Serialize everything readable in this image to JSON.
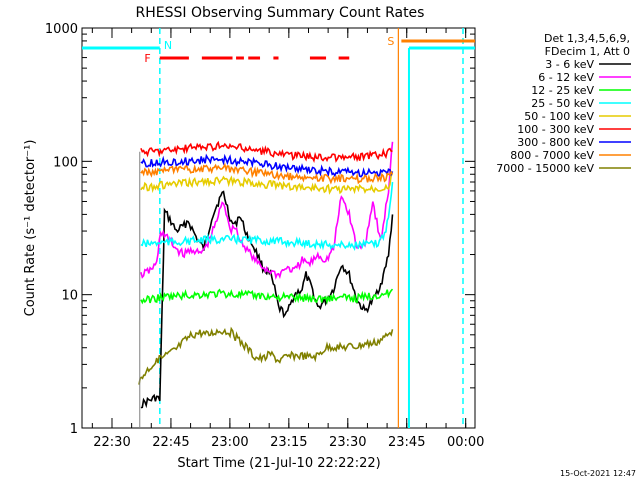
{
  "chart_data": {
    "type": "line",
    "title": "RHESSI Observing Summary Count Rates",
    "xlabel": "Start Time (21-Jul-10 22:22:22)",
    "ylabel": "Count Rate (s⁻¹ detector⁻¹)",
    "y_scale": "log",
    "ylim": [
      1,
      1000
    ],
    "y_ticks": [
      {
        "value": 1,
        "label": "1"
      },
      {
        "value": 10,
        "label": "10"
      },
      {
        "value": 100,
        "label": "100"
      },
      {
        "value": 1000,
        "label": "1000"
      }
    ],
    "xlim_minutes_from_start": [
      0,
      100
    ],
    "x_ticks": [
      {
        "label": "22:30",
        "minute": 7.63
      },
      {
        "label": "22:45",
        "minute": 22.63
      },
      {
        "label": "23:00",
        "minute": 37.63
      },
      {
        "label": "23:15",
        "minute": 52.63
      },
      {
        "label": "23:30",
        "minute": 67.63
      },
      {
        "label": "23:45",
        "minute": 82.63
      },
      {
        "label": "00:00",
        "minute": 97.63
      }
    ],
    "legend": {
      "position": "right",
      "header_lines": [
        "Det 1,3,4,5,6,9,",
        "FDecim 1, Att 0"
      ],
      "entries": [
        {
          "label": "3 - 6 keV",
          "color": "#000000"
        },
        {
          "label": "6 - 12 keV",
          "color": "#ff00ff"
        },
        {
          "label": "12 - 25 keV",
          "color": "#00ff00"
        },
        {
          "label": "25 - 50 keV",
          "color": "#00ffff"
        },
        {
          "label": "50 - 100 keV",
          "color": "#e6cc00"
        },
        {
          "label": "100 - 300 keV",
          "color": "#ff0000"
        },
        {
          "label": "300 - 800 keV",
          "color": "#0000ff"
        },
        {
          "label": "800 - 7000 keV",
          "color": "#ff8000"
        },
        {
          "label": "7000 - 15000 keV",
          "color": "#808000"
        }
      ]
    },
    "annotations": [
      {
        "label": "N",
        "minute": 19.8,
        "color": "#00ffff"
      },
      {
        "label": "F",
        "minute": 18.5,
        "color": "#ff0000"
      },
      {
        "label": "S",
        "minute": 80.5,
        "color": "#ff8000"
      }
    ],
    "series": [
      {
        "name": "3 - 6 keV",
        "color": "#000000",
        "x": [
          15,
          17,
          19,
          19.8,
          21,
          22,
          24,
          26,
          27,
          29,
          31,
          32,
          33,
          35,
          36,
          37,
          38,
          39,
          40,
          42,
          44,
          46,
          48,
          49,
          50,
          52,
          54,
          56,
          57,
          58,
          59,
          60,
          62,
          64,
          66,
          68,
          70,
          72,
          74,
          76,
          77,
          78,
          79
        ],
        "y": [
          1.5,
          1.6,
          1.7,
          1.6,
          42,
          38,
          30,
          33,
          36,
          27,
          22,
          28,
          38,
          52,
          58,
          45,
          35,
          33,
          40,
          28,
          22,
          16,
          14,
          11,
          8,
          7,
          10,
          11,
          14,
          12,
          10,
          8,
          9,
          11,
          17,
          14,
          9,
          7.5,
          9,
          12,
          15,
          20,
          40
        ]
      },
      {
        "name": "6 - 12 keV",
        "color": "#ff00ff",
        "x": [
          15,
          17,
          19,
          20,
          22,
          24,
          26,
          28,
          30,
          32,
          34,
          35,
          36,
          37,
          38,
          39,
          40,
          42,
          44,
          46,
          48,
          50,
          52,
          54,
          56,
          58,
          60,
          62,
          64,
          66,
          68,
          70,
          72,
          74,
          76,
          78,
          79
        ],
        "y": [
          14,
          15,
          17,
          30,
          26,
          22,
          20,
          22,
          20,
          24,
          34,
          42,
          50,
          38,
          30,
          33,
          26,
          22,
          18,
          16,
          15,
          14,
          16,
          15,
          18,
          17,
          20,
          18,
          22,
          55,
          40,
          22,
          24,
          50,
          25,
          60,
          140
        ]
      },
      {
        "name": "12 - 25 keV",
        "color": "#00ff00",
        "x": [
          15,
          20,
          25,
          30,
          35,
          40,
          45,
          50,
          55,
          60,
          65,
          70,
          75,
          78,
          79
        ],
        "y": [
          9,
          9.5,
          9.8,
          10,
          10.2,
          10,
          9.8,
          9.6,
          9.5,
          9.3,
          9.5,
          9.4,
          10,
          10.2,
          11
        ]
      },
      {
        "name": "25 - 50 keV",
        "color": "#00ffff",
        "x": [
          15,
          20,
          25,
          30,
          35,
          40,
          45,
          50,
          55,
          60,
          65,
          70,
          75,
          77,
          78,
          79
        ],
        "y": [
          24,
          24.5,
          25,
          25.5,
          26,
          26,
          25.5,
          25,
          24.5,
          24,
          23.5,
          23.5,
          24,
          28,
          40,
          70
        ]
      },
      {
        "name": "50 - 100 keV",
        "color": "#e6cc00",
        "x": [
          15,
          20,
          25,
          30,
          35,
          40,
          45,
          50,
          55,
          60,
          65,
          70,
          75,
          78,
          79
        ],
        "y": [
          64,
          66,
          68,
          70,
          72,
          70,
          68,
          66,
          64,
          63,
          62,
          62,
          63,
          66,
          80
        ]
      },
      {
        "name": "100 - 300 keV",
        "color": "#ff0000",
        "x": [
          15,
          20,
          25,
          30,
          35,
          40,
          45,
          50,
          55,
          60,
          65,
          70,
          75,
          78,
          79
        ],
        "y": [
          118,
          120,
          124,
          128,
          130,
          126,
          120,
          114,
          110,
          108,
          106,
          108,
          110,
          115,
          120
        ]
      },
      {
        "name": "300 - 800 keV",
        "color": "#0000ff",
        "x": [
          15,
          20,
          25,
          30,
          35,
          40,
          45,
          50,
          55,
          60,
          65,
          70,
          75,
          78,
          79
        ],
        "y": [
          96,
          98,
          100,
          102,
          104,
          100,
          96,
          92,
          88,
          85,
          83,
          82,
          82,
          82,
          84
        ]
      },
      {
        "name": "800 - 7000 keV",
        "color": "#ff8000",
        "x": [
          15,
          20,
          25,
          30,
          35,
          40,
          45,
          50,
          55,
          60,
          65,
          70,
          75,
          78,
          79
        ],
        "y": [
          82,
          84,
          86,
          88,
          89,
          86,
          82,
          78,
          76,
          75,
          74,
          74,
          75,
          76,
          80
        ]
      },
      {
        "name": "7000 - 15000 keV",
        "color": "#808000",
        "x": [
          14.5,
          16,
          18,
          20,
          22,
          24,
          26,
          28,
          30,
          32,
          34,
          36,
          38,
          40,
          42,
          44,
          46,
          48,
          50,
          52,
          54,
          56,
          58,
          60,
          62,
          64,
          66,
          68,
          70,
          72,
          74,
          76,
          78,
          79
        ],
        "y": [
          2.2,
          2.6,
          3.0,
          3.3,
          3.6,
          3.9,
          4.5,
          5.0,
          5.2,
          5.0,
          5.3,
          5.4,
          5.2,
          4.5,
          4.0,
          3.4,
          3.3,
          3.6,
          3.2,
          3.4,
          3.5,
          3.5,
          3.4,
          3.5,
          4.0,
          4.1,
          4.0,
          4.1,
          4.1,
          4.3,
          4.3,
          4.6,
          5.0,
          5.5
        ]
      }
    ],
    "bands": {
      "saa_cyan_minutes": [
        [
          0,
          19.8
        ],
        [
          83.2,
          100
        ]
      ],
      "flare_red_dashes_minutes": [
        [
          19.8,
          27.2
        ],
        [
          30.5,
          38.3
        ],
        [
          39.2,
          41.2
        ],
        [
          42.3,
          45.3
        ],
        [
          48.7,
          50.0
        ],
        [
          58.0,
          62.1
        ],
        [
          65.3,
          68.0
        ]
      ],
      "orange_marker_minutes": [
        80.5,
        100
      ]
    }
  },
  "timestamp": "15-Oct-2021 12:47"
}
